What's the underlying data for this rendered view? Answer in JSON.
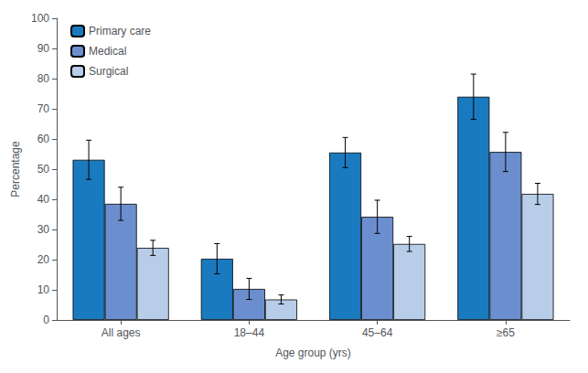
{
  "chart_data": {
    "type": "bar",
    "categories": [
      "All ages",
      "18–44",
      "45–64",
      "≥65"
    ],
    "series": [
      {
        "name": "Primary care",
        "color": "#1a7abf",
        "values": [
          53.1,
          20.3,
          55.5,
          74.0
        ],
        "errors": [
          6.5,
          5.0,
          5.0,
          7.5
        ]
      },
      {
        "name": "Medical",
        "color": "#6b8fce",
        "values": [
          38.5,
          10.3,
          34.2,
          55.7
        ],
        "errors": [
          5.5,
          3.5,
          5.5,
          6.5
        ]
      },
      {
        "name": "Surgical",
        "color": "#b8cde8",
        "values": [
          23.9,
          6.8,
          25.2,
          41.8
        ],
        "errors": [
          2.5,
          1.5,
          2.5,
          3.5
        ]
      }
    ],
    "xlabel": "Age group (yrs)",
    "ylabel": "Percentage",
    "ylim": [
      0,
      100
    ],
    "yticks": [
      0,
      10,
      20,
      30,
      40,
      50,
      60,
      70,
      80,
      90,
      100
    ],
    "grid": false,
    "legend": "upper left"
  }
}
